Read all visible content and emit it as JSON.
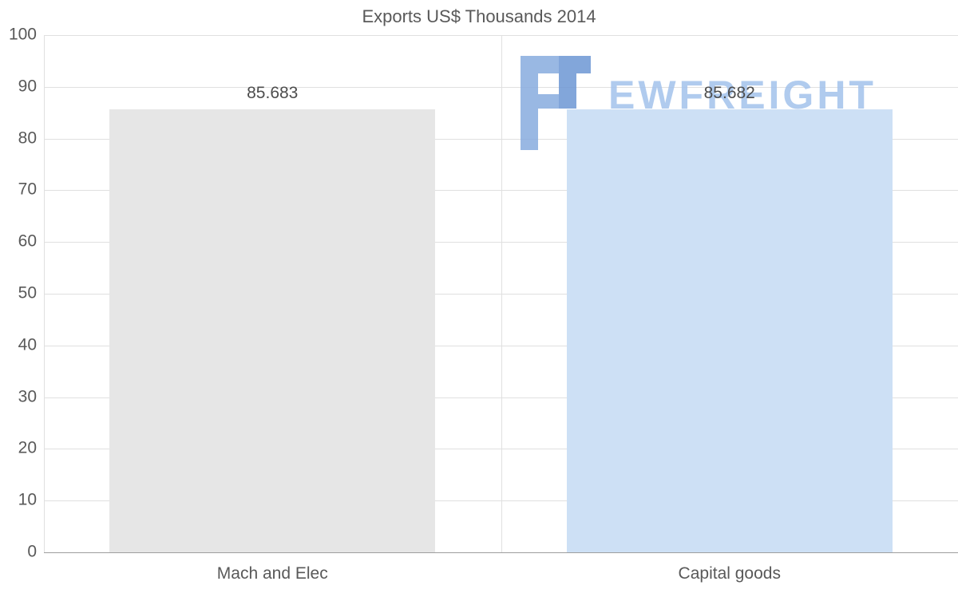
{
  "chart_data": {
    "type": "bar",
    "title": "Exports US$ Thousands 2014",
    "categories": [
      "Mach and Elec",
      "Capital goods"
    ],
    "values": [
      85.683,
      85.682
    ],
    "value_labels": [
      "85.683",
      "85.682"
    ],
    "bar_colors": [
      "#e6e6e6",
      "#cde0f5"
    ],
    "ylim": [
      0,
      100
    ],
    "yticks": [
      0,
      10,
      20,
      30,
      40,
      50,
      60,
      70,
      80,
      90,
      100
    ],
    "grid": "horizontal",
    "legend": "none",
    "xlabel": "",
    "ylabel": ""
  },
  "watermark": {
    "text": "EWFREIGHT",
    "color": "#a3c2ec",
    "glyph_light": "#88acdf",
    "glyph_dark": "#6d97d4"
  },
  "colors": {
    "tick_text": "#595959",
    "value_text": "#4d4d4d",
    "grid": "#e0e0e0",
    "axis": "#9e9e9e"
  }
}
